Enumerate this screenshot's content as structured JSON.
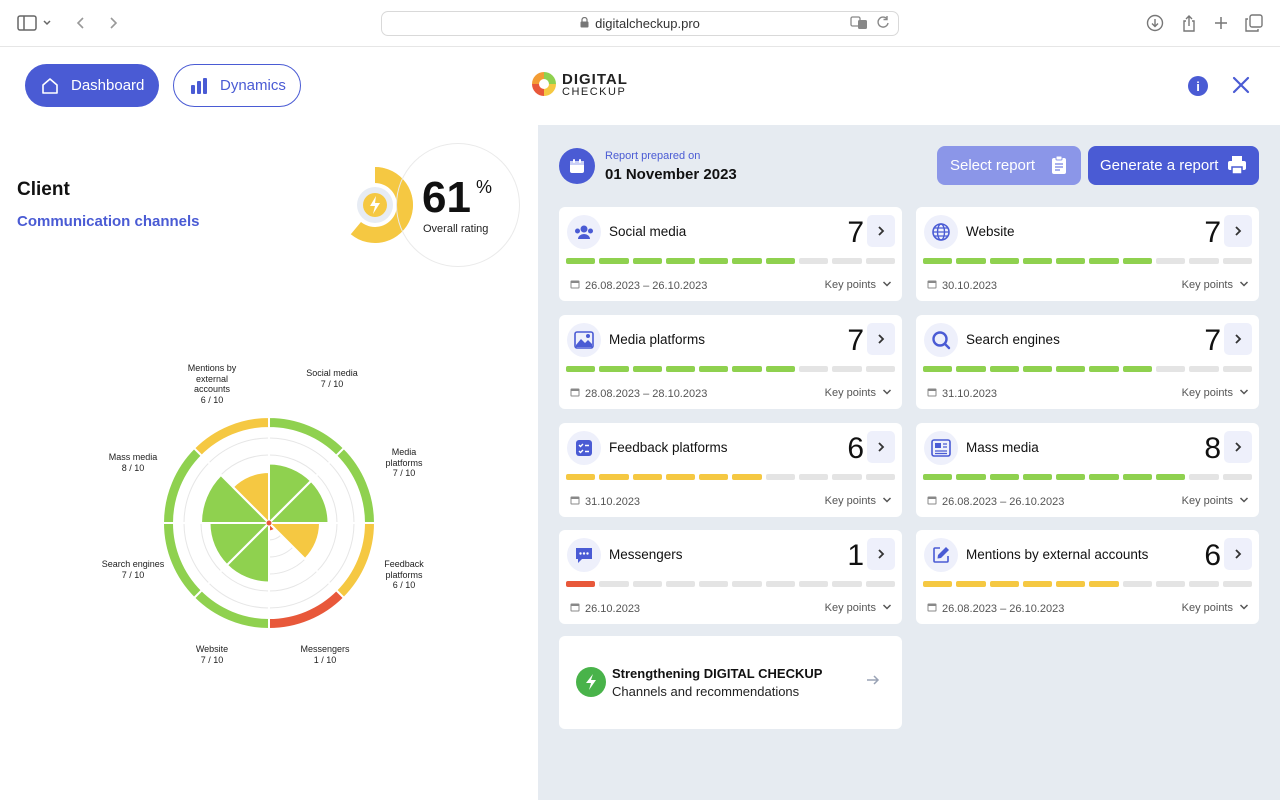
{
  "browser": {
    "url": "digitalcheckup.pro"
  },
  "nav": {
    "dashboard_label": "Dashboard",
    "dynamics_label": "Dynamics"
  },
  "logo": {
    "line1": "DIGITAL",
    "line2": "CHECKUP"
  },
  "info_label": "i",
  "client": {
    "title": "Client",
    "subtitle": "Communication channels"
  },
  "rating": {
    "value": "61",
    "unit": "%",
    "label": "Overall rating",
    "value_fraction": 0.61
  },
  "radar": {
    "labels": [
      {
        "name": "Social media",
        "score": "7 / 10"
      },
      {
        "name": "Media platforms",
        "score": "7 / 10"
      },
      {
        "name": "Feedback platforms",
        "score": "6 / 10"
      },
      {
        "name": "Messengers",
        "score": "1 / 10"
      },
      {
        "name": "Website",
        "score": "7 / 10"
      },
      {
        "name": "Search engines",
        "score": "7 / 10"
      },
      {
        "name": "Mass media",
        "score": "8 / 10"
      },
      {
        "name": "Mentions by external accounts",
        "score": "6 / 10"
      }
    ],
    "values": [
      7,
      7,
      6,
      1,
      7,
      7,
      8,
      6
    ],
    "max": 10
  },
  "report": {
    "label": "Report prepared on",
    "date": "01 November 2023",
    "select_label": "Select report",
    "generate_label": "Generate a report"
  },
  "cards": [
    {
      "title": "Social media",
      "score": "7",
      "value": 7,
      "date": "26.08.2023 – 26.10.2023",
      "key": "Key points",
      "icon": "users-icon"
    },
    {
      "title": "Website",
      "score": "7",
      "value": 7,
      "date": "30.10.2023",
      "key": "Key points",
      "icon": "globe-icon"
    },
    {
      "title": "Media platforms",
      "score": "7",
      "value": 7,
      "date": "28.08.2023 – 28.10.2023",
      "key": "Key points",
      "icon": "image-icon"
    },
    {
      "title": "Search engines",
      "score": "7",
      "value": 7,
      "date": "31.10.2023",
      "key": "Key points",
      "icon": "search-icon"
    },
    {
      "title": "Feedback platforms",
      "score": "6",
      "value": 6,
      "date": "31.10.2023",
      "key": "Key points",
      "icon": "checklist-icon"
    },
    {
      "title": "Mass media",
      "score": "8",
      "value": 8,
      "date": "26.08.2023 – 26.10.2023",
      "key": "Key points",
      "icon": "newspaper-icon"
    },
    {
      "title": "Messengers",
      "score": "1",
      "value": 1,
      "date": "26.10.2023",
      "key": "Key points",
      "icon": "chat-icon"
    },
    {
      "title": "Mentions by external accounts",
      "score": "6",
      "value": 6,
      "date": "26.08.2023 – 26.10.2023",
      "key": "Key points",
      "icon": "edit-icon"
    }
  ],
  "promo": {
    "title": "Strengthening DIGITAL CHECKUP",
    "subtitle": "Channels and recommendations"
  },
  "colors": {
    "accent": "#4a5bd4",
    "green": "#8fd14f",
    "yellow": "#f5c842",
    "red": "#e8583a",
    "empty": "#e4e4e4"
  }
}
